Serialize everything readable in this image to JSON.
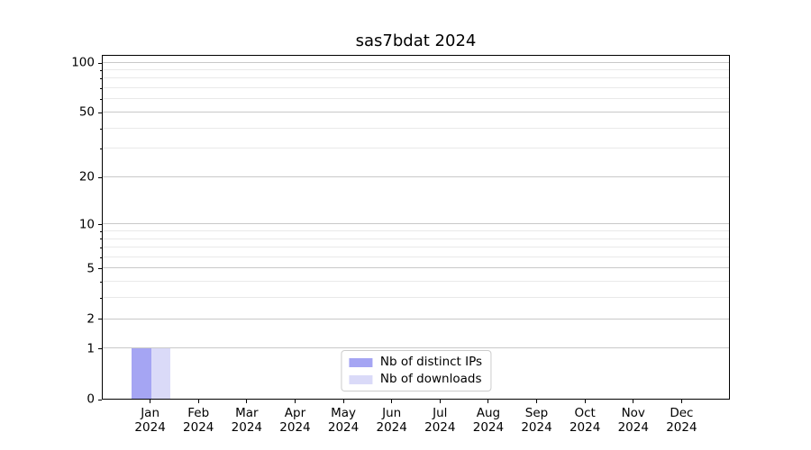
{
  "chart_data": {
    "type": "bar",
    "title": "sas7bdat 2024",
    "x": {
      "months": [
        "Jan",
        "Feb",
        "Mar",
        "Apr",
        "May",
        "Jun",
        "Jul",
        "Aug",
        "Sep",
        "Oct",
        "Nov",
        "Dec"
      ],
      "year": "2024"
    },
    "series": [
      {
        "name": "Nb of distinct IPs",
        "color": "#a5a5f3",
        "values": [
          1,
          0,
          0,
          0,
          0,
          0,
          0,
          0,
          0,
          0,
          0,
          0
        ]
      },
      {
        "name": "Nb of downloads",
        "color": "#dadaf8",
        "values": [
          1,
          0,
          0,
          0,
          0,
          0,
          0,
          0,
          0,
          0,
          0,
          0
        ]
      }
    ],
    "y_axis": {
      "scale": "log10(1+y)",
      "ylim": [
        0,
        112
      ],
      "major_ticks": [
        0,
        1,
        2,
        5,
        10,
        20,
        50,
        100
      ],
      "minor_ticks": [
        3,
        4,
        6,
        7,
        8,
        9,
        30,
        40,
        60,
        70,
        80,
        90
      ]
    },
    "legend": {
      "location": "lower center"
    },
    "grid": {
      "axis": "y",
      "which": "both"
    },
    "style": {
      "grid_major_color": "#c9c9c9",
      "grid_minor_color": "#e9e9e9",
      "axis_color": "#000000",
      "text_color": "#000000",
      "background": "#ffffff"
    }
  }
}
